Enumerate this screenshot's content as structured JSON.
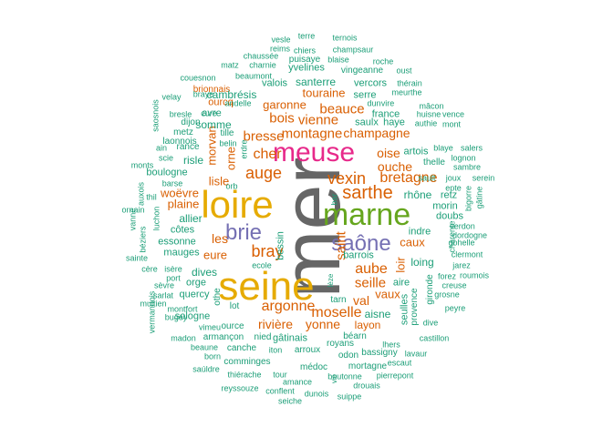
{
  "palette": {
    "grey": "#666666",
    "orange": "#D95F02",
    "gold": "#E6AB02",
    "green": "#66A61E",
    "pink": "#E7298A",
    "purple": "#7570B3",
    "teal": "#1B9E77",
    "brown": "#A6761D"
  },
  "words": [
    {
      "text": "mer",
      "color": "grey"
    },
    {
      "text": "seine",
      "color": "gold"
    },
    {
      "text": "loire",
      "color": "gold"
    },
    {
      "text": "meuse",
      "color": "pink"
    },
    {
      "text": "marne",
      "color": "green"
    },
    {
      "text": "saône",
      "color": "purple"
    },
    {
      "text": "brie",
      "color": "purple"
    },
    {
      "text": "sarthe",
      "color": "orange"
    },
    {
      "text": "vexin",
      "color": "orange"
    },
    {
      "text": "bretagne",
      "color": "orange"
    },
    {
      "text": "bray",
      "color": "orange"
    },
    {
      "text": "auge",
      "color": "orange"
    },
    {
      "text": "cher",
      "color": "orange"
    },
    {
      "text": "moselle",
      "color": "orange"
    },
    {
      "text": "argonne",
      "color": "orange"
    },
    {
      "text": "aube",
      "color": "orange"
    },
    {
      "text": "seille",
      "color": "orange"
    },
    {
      "text": "saint",
      "color": "orange"
    },
    {
      "text": "bresse",
      "color": "orange"
    },
    {
      "text": "montagne",
      "color": "orange"
    },
    {
      "text": "vienne",
      "color": "orange"
    },
    {
      "text": "bois",
      "color": "orange"
    },
    {
      "text": "beauce",
      "color": "orange"
    },
    {
      "text": "champagne",
      "color": "orange"
    },
    {
      "text": "oise",
      "color": "orange"
    },
    {
      "text": "ouche",
      "color": "orange"
    },
    {
      "text": "yonne",
      "color": "orange"
    },
    {
      "text": "rivière",
      "color": "orange"
    },
    {
      "text": "val",
      "color": "orange"
    },
    {
      "text": "les",
      "color": "orange"
    },
    {
      "text": "eure",
      "color": "orange"
    },
    {
      "text": "lisle",
      "color": "orange"
    },
    {
      "text": "morvan",
      "color": "orange"
    },
    {
      "text": "orne",
      "color": "orange"
    },
    {
      "text": "garonne",
      "color": "orange"
    },
    {
      "text": "touraine",
      "color": "orange"
    },
    {
      "text": "loir",
      "color": "orange"
    },
    {
      "text": "caux",
      "color": "orange"
    },
    {
      "text": "vaux",
      "color": "orange"
    },
    {
      "text": "plaine",
      "color": "orange"
    },
    {
      "text": "woëvre",
      "color": "orange"
    },
    {
      "text": "ourcq",
      "color": "orange"
    },
    {
      "text": "brionnais",
      "color": "orange"
    },
    {
      "text": "layon",
      "color": "orange"
    },
    {
      "text": "aisne",
      "color": "teal"
    },
    {
      "text": "risle",
      "color": "teal"
    },
    {
      "text": "allier",
      "color": "teal"
    },
    {
      "text": "côtes",
      "color": "teal"
    },
    {
      "text": "essonne",
      "color": "teal"
    },
    {
      "text": "mauges",
      "color": "teal"
    },
    {
      "text": "dives",
      "color": "teal"
    },
    {
      "text": "orge",
      "color": "teal"
    },
    {
      "text": "quercy",
      "color": "teal"
    },
    {
      "text": "sologne",
      "color": "teal"
    },
    {
      "text": "lot",
      "color": "teal"
    },
    {
      "text": "othe",
      "color": "teal"
    },
    {
      "text": "ource",
      "color": "teal"
    },
    {
      "text": "armançon",
      "color": "teal"
    },
    {
      "text": "nied",
      "color": "teal"
    },
    {
      "text": "gâtinais",
      "color": "teal"
    },
    {
      "text": "arroux",
      "color": "teal"
    },
    {
      "text": "royans",
      "color": "teal"
    },
    {
      "text": "odon",
      "color": "teal"
    },
    {
      "text": "médoc",
      "color": "teal"
    },
    {
      "text": "mortagne",
      "color": "teal"
    },
    {
      "text": "escaut",
      "color": "teal"
    },
    {
      "text": "boutonne",
      "color": "teal"
    },
    {
      "text": "drouais",
      "color": "teal"
    },
    {
      "text": "pierrepont",
      "color": "teal"
    },
    {
      "text": "dunois",
      "color": "teal"
    },
    {
      "text": "suippe",
      "color": "teal"
    },
    {
      "text": "seiche",
      "color": "teal"
    },
    {
      "text": "conflent",
      "color": "teal"
    },
    {
      "text": "reyssouze",
      "color": "teal"
    },
    {
      "text": "thiérache",
      "color": "teal"
    },
    {
      "text": "tour",
      "color": "teal"
    },
    {
      "text": "amance",
      "color": "teal"
    },
    {
      "text": "vie",
      "color": "teal"
    },
    {
      "text": "saúldre",
      "color": "teal"
    },
    {
      "text": "comminges",
      "color": "teal"
    },
    {
      "text": "canche",
      "color": "teal"
    },
    {
      "text": "beaune",
      "color": "teal"
    },
    {
      "text": "born",
      "color": "teal"
    },
    {
      "text": "madon",
      "color": "teal"
    },
    {
      "text": "vimeu",
      "color": "teal"
    },
    {
      "text": "bugey",
      "color": "teal"
    },
    {
      "text": "montfort",
      "color": "teal"
    },
    {
      "text": "sarlat",
      "color": "teal"
    },
    {
      "text": "sèvre",
      "color": "teal"
    },
    {
      "text": "multien",
      "color": "teal"
    },
    {
      "text": "vermandois",
      "color": "teal"
    },
    {
      "text": "cère",
      "color": "teal"
    },
    {
      "text": "isère",
      "color": "teal"
    },
    {
      "text": "port",
      "color": "teal"
    },
    {
      "text": "sainte",
      "color": "teal"
    },
    {
      "text": "béziers",
      "color": "teal"
    },
    {
      "text": "vanne",
      "color": "teal"
    },
    {
      "text": "ornain",
      "color": "teal"
    },
    {
      "text": "thil",
      "color": "teal"
    },
    {
      "text": "auxois",
      "color": "teal"
    },
    {
      "text": "luchon",
      "color": "teal"
    },
    {
      "text": "barse",
      "color": "teal"
    },
    {
      "text": "boulogne",
      "color": "teal"
    },
    {
      "text": "monts",
      "color": "teal"
    },
    {
      "text": "scie",
      "color": "teal"
    },
    {
      "text": "rance",
      "color": "teal"
    },
    {
      "text": "laonnois",
      "color": "teal"
    },
    {
      "text": "metz",
      "color": "teal"
    },
    {
      "text": "dijon",
      "color": "teal"
    },
    {
      "text": "ain",
      "color": "teal"
    },
    {
      "text": "saosnois",
      "color": "teal"
    },
    {
      "text": "bresle",
      "color": "teal"
    },
    {
      "text": "cure",
      "color": "teal"
    },
    {
      "text": "andelle",
      "color": "teal"
    },
    {
      "text": "velay",
      "color": "teal"
    },
    {
      "text": "braye",
      "color": "teal"
    },
    {
      "text": "couesnon",
      "color": "teal"
    },
    {
      "text": "matz",
      "color": "teal"
    },
    {
      "text": "charnie",
      "color": "teal"
    },
    {
      "text": "beaumont",
      "color": "teal"
    },
    {
      "text": "chaussée",
      "color": "teal"
    },
    {
      "text": "reims",
      "color": "teal"
    },
    {
      "text": "vesle",
      "color": "teal"
    },
    {
      "text": "terre",
      "color": "teal"
    },
    {
      "text": "chiers",
      "color": "teal"
    },
    {
      "text": "puisaye",
      "color": "teal"
    },
    {
      "text": "yvelines",
      "color": "teal"
    },
    {
      "text": "ternois",
      "color": "teal"
    },
    {
      "text": "champsaur",
      "color": "teal"
    },
    {
      "text": "blaise",
      "color": "teal"
    },
    {
      "text": "roche",
      "color": "teal"
    },
    {
      "text": "vingeanne",
      "color": "teal"
    },
    {
      "text": "oust",
      "color": "teal"
    },
    {
      "text": "valois",
      "color": "teal"
    },
    {
      "text": "santerre",
      "color": "teal"
    },
    {
      "text": "vercors",
      "color": "teal"
    },
    {
      "text": "thérain",
      "color": "teal"
    },
    {
      "text": "serre",
      "color": "teal"
    },
    {
      "text": "meurthe",
      "color": "teal"
    },
    {
      "text": "dun",
      "color": "teal"
    },
    {
      "text": "vire",
      "color": "teal"
    },
    {
      "text": "mâcon",
      "color": "teal"
    },
    {
      "text": "vence",
      "color": "teal"
    },
    {
      "text": "huisne",
      "color": "teal"
    },
    {
      "text": "france",
      "color": "teal"
    },
    {
      "text": "saulx",
      "color": "teal"
    },
    {
      "text": "haye",
      "color": "teal"
    },
    {
      "text": "authie",
      "color": "teal"
    },
    {
      "text": "mont",
      "color": "teal"
    },
    {
      "text": "artois",
      "color": "teal"
    },
    {
      "text": "blaye",
      "color": "teal"
    },
    {
      "text": "salers",
      "color": "teal"
    },
    {
      "text": "lognon",
      "color": "teal"
    },
    {
      "text": "thelle",
      "color": "teal"
    },
    {
      "text": "sambre",
      "color": "teal"
    },
    {
      "text": "joux",
      "color": "teal"
    },
    {
      "text": "serein",
      "color": "teal"
    },
    {
      "text": "epte",
      "color": "teal"
    },
    {
      "text": "rhône",
      "color": "teal"
    },
    {
      "text": "retz",
      "color": "teal"
    },
    {
      "text": "morin",
      "color": "teal"
    },
    {
      "text": "doubs",
      "color": "teal"
    },
    {
      "text": "bigorre",
      "color": "teal"
    },
    {
      "text": "gâtine",
      "color": "teal"
    },
    {
      "text": "verdon",
      "color": "teal"
    },
    {
      "text": "dordogne",
      "color": "teal"
    },
    {
      "text": "charente",
      "color": "teal"
    },
    {
      "text": "gohelle",
      "color": "teal"
    },
    {
      "text": "indre",
      "color": "teal"
    },
    {
      "text": "clermont",
      "color": "teal"
    },
    {
      "text": "jarez",
      "color": "teal"
    },
    {
      "text": "loing",
      "color": "teal"
    },
    {
      "text": "forez",
      "color": "teal"
    },
    {
      "text": "roumois",
      "color": "teal"
    },
    {
      "text": "creuse",
      "color": "teal"
    },
    {
      "text": "grosne",
      "color": "teal"
    },
    {
      "text": "peyre",
      "color": "teal"
    },
    {
      "text": "aire",
      "color": "teal"
    },
    {
      "text": "gironde",
      "color": "teal"
    },
    {
      "text": "provence",
      "color": "teal"
    },
    {
      "text": "seulles",
      "color": "teal"
    },
    {
      "text": "dive",
      "color": "teal"
    },
    {
      "text": "castillon",
      "color": "teal"
    },
    {
      "text": "lavaur",
      "color": "teal"
    },
    {
      "text": "lhers",
      "color": "teal"
    },
    {
      "text": "bassigny",
      "color": "teal"
    },
    {
      "text": "béarn",
      "color": "teal"
    },
    {
      "text": "tarn",
      "color": "teal"
    },
    {
      "text": "lèze",
      "color": "teal"
    },
    {
      "text": "barrois",
      "color": "teal"
    },
    {
      "text": "bar",
      "color": "teal"
    },
    {
      "text": "bessin",
      "color": "teal"
    },
    {
      "text": "ecole",
      "color": "teal"
    },
    {
      "text": "iton",
      "color": "teal"
    },
    {
      "text": "orb",
      "color": "teal"
    },
    {
      "text": "erdre",
      "color": "teal"
    },
    {
      "text": "belin",
      "color": "teal"
    },
    {
      "text": "tille",
      "color": "teal"
    },
    {
      "text": "somme",
      "color": "teal"
    },
    {
      "text": "avre",
      "color": "teal"
    },
    {
      "text": "cambrésis",
      "color": "teal"
    },
    {
      "text": "sault",
      "color": "teal"
    }
  ]
}
